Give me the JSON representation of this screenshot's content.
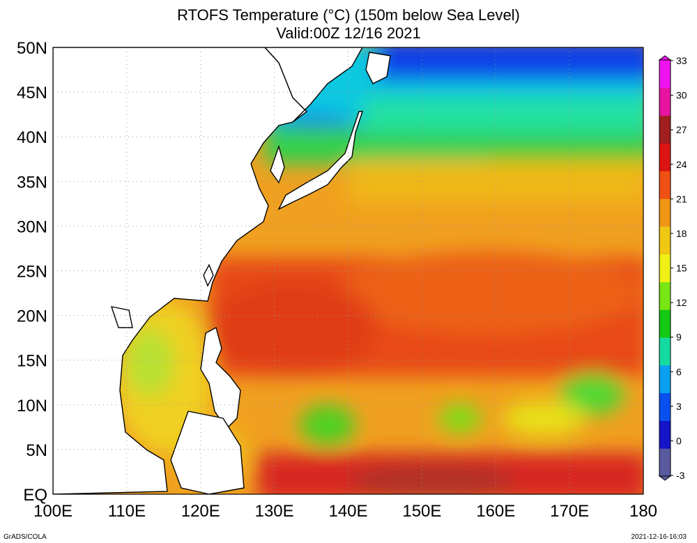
{
  "title_line1": "RTOFS Temperature (°C) (150m below Sea Level)",
  "title_line2": "Valid:00Z 12/16 2021",
  "footer_left": "GrADS/COLA",
  "footer_right": "2021-12-16-16:03",
  "map": {
    "lon_range": [
      100,
      180
    ],
    "lat_range": [
      0,
      50
    ],
    "lon_ticks": [
      "100E",
      "110E",
      "120E",
      "130E",
      "140E",
      "150E",
      "160E",
      "170E",
      "180"
    ],
    "lat_ticks": [
      "EQ",
      "5N",
      "10N",
      "15N",
      "20N",
      "25N",
      "30N",
      "35N",
      "40N",
      "45N",
      "50N"
    ],
    "grid": "dotted"
  },
  "colorbar": {
    "labels": [
      "-3",
      "0",
      "3",
      "6",
      "9",
      "12",
      "15",
      "18",
      "21",
      "24",
      "27",
      "30",
      "33"
    ],
    "colors": [
      "#5a5aa0",
      "#1414c8",
      "#0a50f0",
      "#0aa0f0",
      "#14dca0",
      "#14c814",
      "#78e614",
      "#f0f014",
      "#f0c814",
      "#f09614",
      "#f05014",
      "#dc1414",
      "#a01e1e",
      "#e614a0",
      "#f014f0"
    ]
  }
}
